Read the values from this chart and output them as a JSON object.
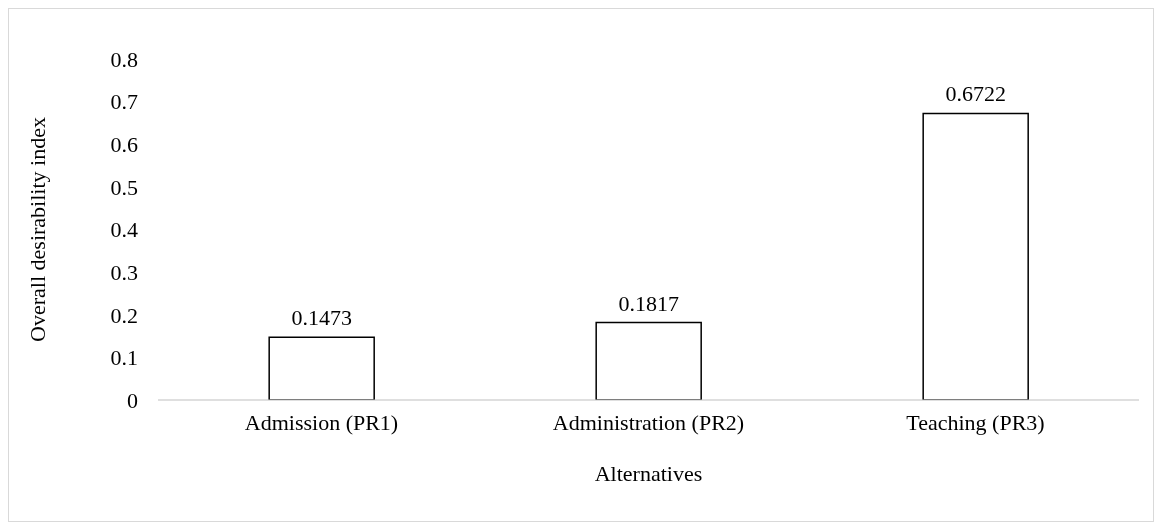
{
  "chart_data": {
    "type": "bar",
    "xlabel": "Alternatives",
    "ylabel": "Overall desirability index",
    "categories": [
      "Admission (PR1)",
      "Administration (PR2)",
      "Teaching (PR3)"
    ],
    "values": [
      0.1473,
      0.1817,
      0.6722
    ],
    "color": "#ffffff",
    "ylim": [
      0,
      0.8
    ],
    "yticks": [
      0,
      0.1,
      0.2,
      0.3,
      0.4,
      0.5,
      0.6,
      0.7,
      0.8
    ],
    "grid": false,
    "data_labels": true
  }
}
